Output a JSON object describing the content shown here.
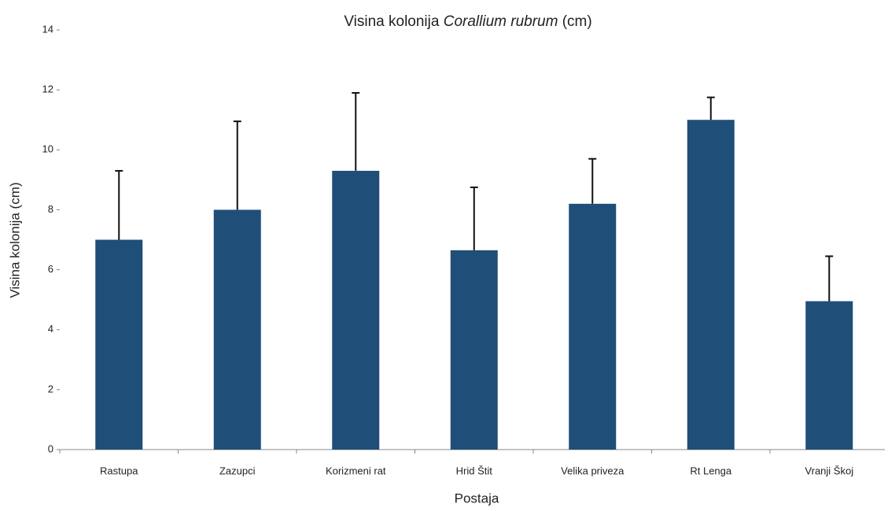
{
  "chart_data": {
    "type": "bar",
    "title": [
      "Visina kolonija",
      "Corallium rubrum",
      "(cm)"
    ],
    "x_label": "Postaja",
    "y_label": "Visina kolonija (cm)",
    "categories": [
      "Rastupa",
      "Zazupci",
      "Korizmeni rat",
      "Hrid Štit",
      "Velika priveza",
      "Rt Lenga",
      "Vranji Škoj"
    ],
    "values": [
      7,
      8,
      9.3,
      6.65,
      8.2,
      11,
      4.95
    ],
    "errors": [
      2.3,
      2.95,
      2.6,
      2.1,
      1.5,
      0.75,
      1.5
    ],
    "color": "#1f4e79",
    "ylim": [
      0,
      14
    ],
    "yticks": [
      0,
      2,
      4,
      6,
      8,
      10,
      12,
      14
    ],
    "grid": false
  }
}
